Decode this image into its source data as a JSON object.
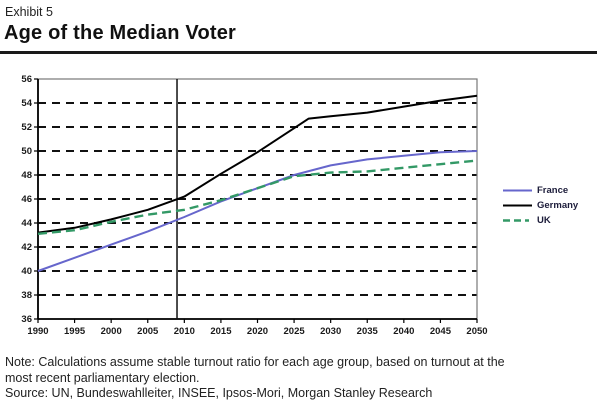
{
  "header": {
    "exhibit_label": "Exhibit 5",
    "title": "Age of the Median Voter"
  },
  "footer": {
    "note_line1": "Note: Calculations assume stable turnout ratio for each age group, based on turnout at the",
    "note_line2": "most recent parliamentary election.",
    "source": "Source: UN, Bundeswahlleiter, INSEE, Ipsos-Mori, Morgan Stanley Research"
  },
  "chart_data": {
    "type": "line",
    "title": "Age of the Median Voter",
    "xlabel": "",
    "ylabel": "",
    "xlim": [
      1990,
      2050
    ],
    "ylim": [
      36,
      56
    ],
    "x_ticks": [
      1990,
      1995,
      2000,
      2005,
      2010,
      2015,
      2020,
      2025,
      2030,
      2035,
      2040,
      2045,
      2050
    ],
    "y_ticks": [
      36,
      38,
      40,
      42,
      44,
      46,
      48,
      50,
      52,
      54,
      56
    ],
    "grid": "horizontal-dashed",
    "grid_color": "#111111",
    "frame_color": "#777777",
    "axis_color": "#000000",
    "reference_line_x": 2009,
    "legend_position": "right",
    "series": [
      {
        "name": "France",
        "color": "#6666cc",
        "dash": "solid",
        "x": [
          1990,
          1995,
          2000,
          2005,
          2010,
          2015,
          2020,
          2025,
          2030,
          2035,
          2040,
          2045,
          2050
        ],
        "values": [
          40.0,
          41.1,
          42.2,
          43.3,
          44.5,
          45.8,
          46.9,
          48.0,
          48.8,
          49.3,
          49.6,
          49.9,
          50.0
        ]
      },
      {
        "name": "Germany",
        "color": "#000000",
        "dash": "solid",
        "x": [
          1990,
          1995,
          2000,
          2005,
          2010,
          2015,
          2020,
          2025,
          2027,
          2030,
          2035,
          2040,
          2045,
          2050
        ],
        "values": [
          43.2,
          43.6,
          44.3,
          45.1,
          46.2,
          48.1,
          49.9,
          51.9,
          52.7,
          52.9,
          53.2,
          53.7,
          54.2,
          54.6
        ]
      },
      {
        "name": "UK",
        "color": "#339966",
        "dash": "dashed",
        "x": [
          1990,
          1995,
          2000,
          2005,
          2010,
          2015,
          2020,
          2025,
          2030,
          2035,
          2040,
          2045,
          2050
        ],
        "values": [
          43.1,
          43.4,
          44.1,
          44.7,
          45.1,
          45.9,
          46.9,
          47.9,
          48.2,
          48.3,
          48.6,
          48.9,
          49.2
        ]
      }
    ]
  }
}
